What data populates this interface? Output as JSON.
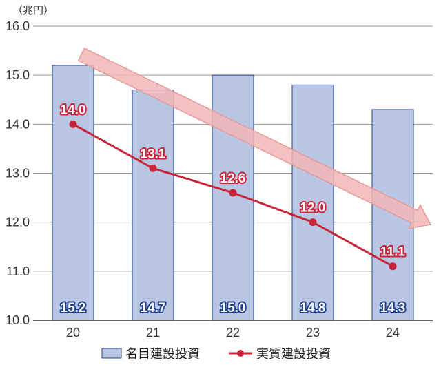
{
  "chart_data": {
    "type": "bar",
    "unit_label": "（兆円）",
    "categories": [
      "20",
      "21",
      "22",
      "23",
      "24"
    ],
    "ylim": [
      10.0,
      16.0
    ],
    "yticks": [
      "10.0",
      "11.0",
      "12.0",
      "13.0",
      "14.0",
      "15.0",
      "16.0"
    ],
    "ytick_values": [
      10,
      11,
      12,
      13,
      14,
      15,
      16
    ],
    "grid": true,
    "legend_position": "bottom",
    "series": [
      {
        "name": "名目建設投資",
        "type": "bar",
        "values": [
          15.2,
          14.7,
          15.0,
          14.8,
          14.3
        ],
        "labels": [
          "15.2",
          "14.7",
          "15.0",
          "14.8",
          "14.3"
        ],
        "color": "#b9c6e3",
        "border": "#1f3f8f"
      },
      {
        "name": "実質建設投資",
        "type": "line",
        "values": [
          14.0,
          13.1,
          12.6,
          12.0,
          11.1
        ],
        "labels": [
          "14.0",
          "13.1",
          "12.6",
          "12.0",
          "11.1"
        ],
        "color": "#c8253a"
      }
    ],
    "annotation": {
      "type": "trend-arrow",
      "direction": "down",
      "color": "#f2b6b6"
    }
  }
}
